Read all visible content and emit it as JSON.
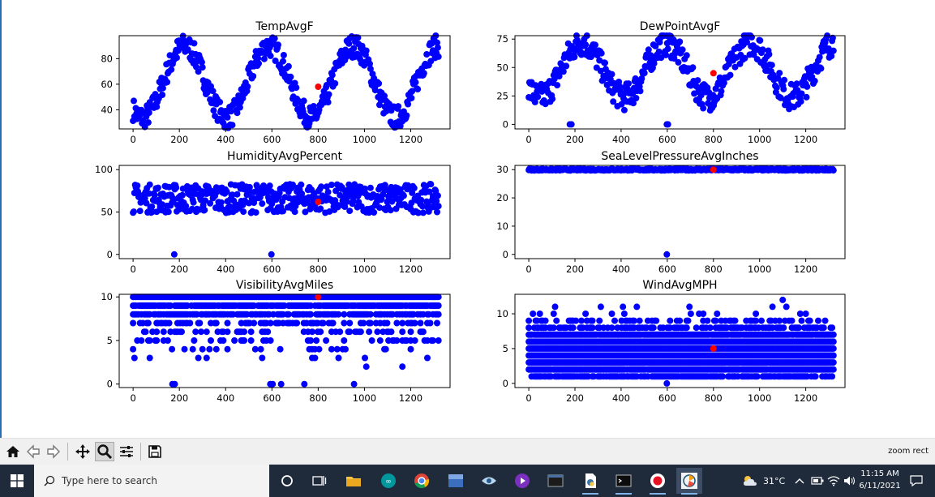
{
  "chart_data": [
    {
      "type": "scatter",
      "title": "TempAvgF",
      "xlim": [
        -60,
        1370
      ],
      "ylim": [
        25,
        98
      ],
      "xticks": [
        0,
        200,
        400,
        600,
        800,
        1000,
        1200
      ],
      "yticks": [
        40,
        60,
        80
      ],
      "series": [
        {
          "color": "#0000ff",
          "pattern": "seasonal",
          "base": 62,
          "amp": 28,
          "phase": 222,
          "spread": 9
        },
        {
          "color": "#ff0000",
          "points": [
            [
              800,
              58
            ]
          ]
        }
      ]
    },
    {
      "type": "scatter",
      "title": "DewPointAvgF",
      "xlim": [
        -60,
        1370
      ],
      "ylim": [
        -4,
        78
      ],
      "xticks": [
        0,
        200,
        400,
        600,
        800,
        1000,
        1200
      ],
      "yticks": [
        0,
        25,
        50,
        75
      ],
      "series": [
        {
          "color": "#0000ff",
          "pattern": "seasonal",
          "base": 48,
          "amp": 24,
          "phase": 230,
          "spread": 12,
          "extra": [
            [
              178,
              0
            ],
            [
              185,
              0
            ],
            [
              598,
              0
            ],
            [
              603,
              0
            ]
          ]
        },
        {
          "color": "#ff0000",
          "points": [
            [
              800,
              45
            ]
          ]
        }
      ]
    },
    {
      "type": "scatter",
      "title": "HumidityAvgPercent",
      "xlim": [
        -60,
        1370
      ],
      "ylim": [
        -5,
        105
      ],
      "xticks": [
        0,
        200,
        400,
        600,
        800,
        1000,
        1200
      ],
      "yticks": [
        0,
        50,
        100
      ],
      "series": [
        {
          "color": "#0000ff",
          "pattern": "band",
          "center": 66,
          "spread": 17,
          "extra": [
            [
              178,
              0
            ],
            [
              598,
              0
            ]
          ]
        },
        {
          "color": "#ff0000",
          "points": [
            [
              800,
              62
            ]
          ]
        }
      ]
    },
    {
      "type": "scatter",
      "title": "SeaLevelPressureAvgInches",
      "xlim": [
        -60,
        1370
      ],
      "ylim": [
        -1.5,
        31.5
      ],
      "xticks": [
        0,
        200,
        400,
        600,
        800,
        1000,
        1200
      ],
      "yticks": [
        0,
        10,
        20,
        30
      ],
      "series": [
        {
          "color": "#0000ff",
          "pattern": "band",
          "center": 30.0,
          "spread": 0.3,
          "extra": [
            [
              598,
              0
            ]
          ]
        },
        {
          "color": "#ff0000",
          "points": [
            [
              800,
              30.0
            ]
          ]
        }
      ]
    },
    {
      "type": "scatter",
      "title": "VisibilityAvgMiles",
      "xlim": [
        -60,
        1370
      ],
      "ylim": [
        -0.4,
        10.3
      ],
      "xticks": [
        0,
        200,
        400,
        600,
        800,
        1000,
        1200
      ],
      "yticks": [
        0,
        5,
        10
      ],
      "series": [
        {
          "color": "#0000ff",
          "pattern": "discrete",
          "levels": [
            [
              10,
              1.0
            ],
            [
              9,
              0.85
            ],
            [
              8,
              0.7
            ],
            [
              7,
              0.35
            ],
            [
              6,
              0.22
            ],
            [
              5,
              0.15
            ],
            [
              4,
              0.08
            ],
            [
              3,
              0.04
            ],
            [
              2,
              0.02
            ]
          ],
          "extra": [
            [
              170,
              0
            ],
            [
              180,
              0
            ],
            [
              593,
              0
            ],
            [
              603,
              0
            ],
            [
              640,
              0
            ],
            [
              740,
              0
            ],
            [
              955,
              0
            ]
          ]
        },
        {
          "color": "#ff0000",
          "points": [
            [
              800,
              10
            ]
          ]
        }
      ]
    },
    {
      "type": "scatter",
      "title": "WindAvgMPH",
      "xlim": [
        -60,
        1370
      ],
      "ylim": [
        -0.6,
        12.8
      ],
      "xticks": [
        0,
        200,
        400,
        600,
        800,
        1000,
        1200
      ],
      "yticks": [
        0,
        5,
        10
      ],
      "series": [
        {
          "color": "#0000ff",
          "pattern": "discrete",
          "levels": [
            [
              1,
              0.75
            ],
            [
              2,
              0.95
            ],
            [
              3,
              1.0
            ],
            [
              4,
              1.0
            ],
            [
              5,
              1.0
            ],
            [
              6,
              1.0
            ],
            [
              7,
              0.95
            ],
            [
              8,
              0.55
            ],
            [
              9,
              0.2
            ],
            [
              10,
              0.08
            ],
            [
              11,
              0.02
            ]
          ],
          "extra": [
            [
              598,
              0
            ],
            [
              1100,
              12
            ]
          ]
        },
        {
          "color": "#ff0000",
          "points": [
            [
              800,
              5
            ]
          ]
        }
      ]
    }
  ],
  "toolbar": {
    "status": "zoom rect",
    "icons": [
      "home-icon",
      "back-arrow-icon",
      "forward-arrow-icon",
      "pan-icon",
      "zoom-icon",
      "configure-subplots-icon",
      "save-icon"
    ]
  },
  "taskbar": {
    "search_placeholder": "Type here to search",
    "temperature": "31°C",
    "time": "11:15 AM",
    "date": "6/11/2021"
  }
}
